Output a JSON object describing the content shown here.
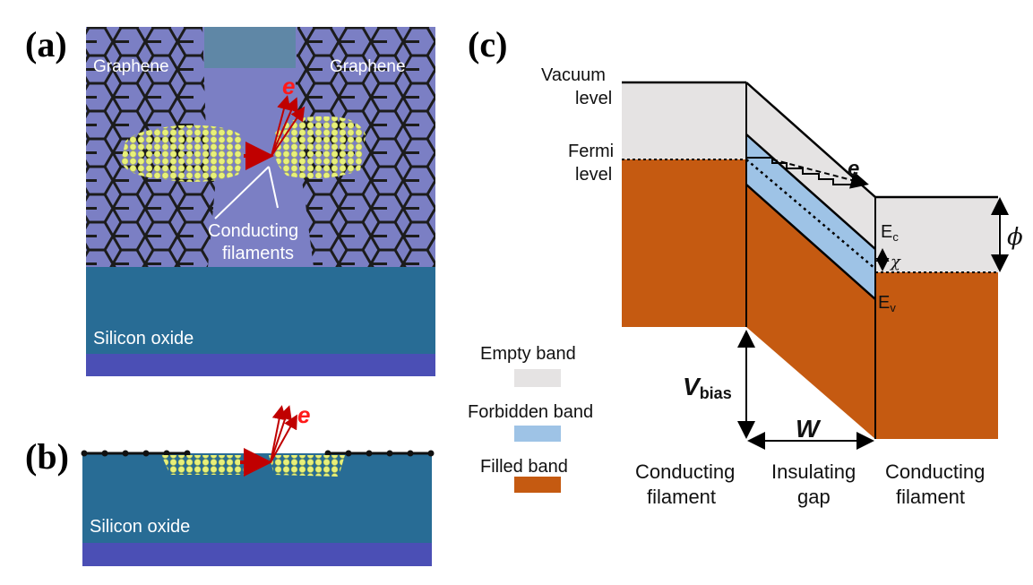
{
  "panel_a": {
    "letter": "(a)",
    "graphene_left": "Graphene",
    "graphene_right": "Graphene",
    "electron": "e",
    "filaments_line1": "Conducting",
    "filaments_line2": "filaments",
    "substrate": "Silicon oxide"
  },
  "panel_b": {
    "letter": "(b)",
    "electron": "e",
    "substrate": "Silicon oxide"
  },
  "panel_c": {
    "letter": "(c)",
    "vacuum_line1": "Vacuum",
    "vacuum_line2": "level",
    "fermi_line1": "Fermi",
    "fermi_line2": "level",
    "electron": "e",
    "ec": "E",
    "ec_sub": "c",
    "ev": "E",
    "ev_sub": "v",
    "chi": "χ",
    "phi": "ϕ",
    "vbias": "V",
    "vbias_sub": "bias",
    "width": "W",
    "legend": [
      {
        "label": "Empty band",
        "color": "#e5e3e3"
      },
      {
        "label": "Forbidden band",
        "color": "#9ec3e6"
      },
      {
        "label": "Filled band",
        "color": "#c55a11"
      }
    ],
    "bottom_left_line1": "Conducting",
    "bottom_left_line2": "filament",
    "bottom_mid_line1": "Insulating",
    "bottom_mid_line2": "gap",
    "bottom_right_line1": "Conducting",
    "bottom_right_line2": "filament"
  }
}
